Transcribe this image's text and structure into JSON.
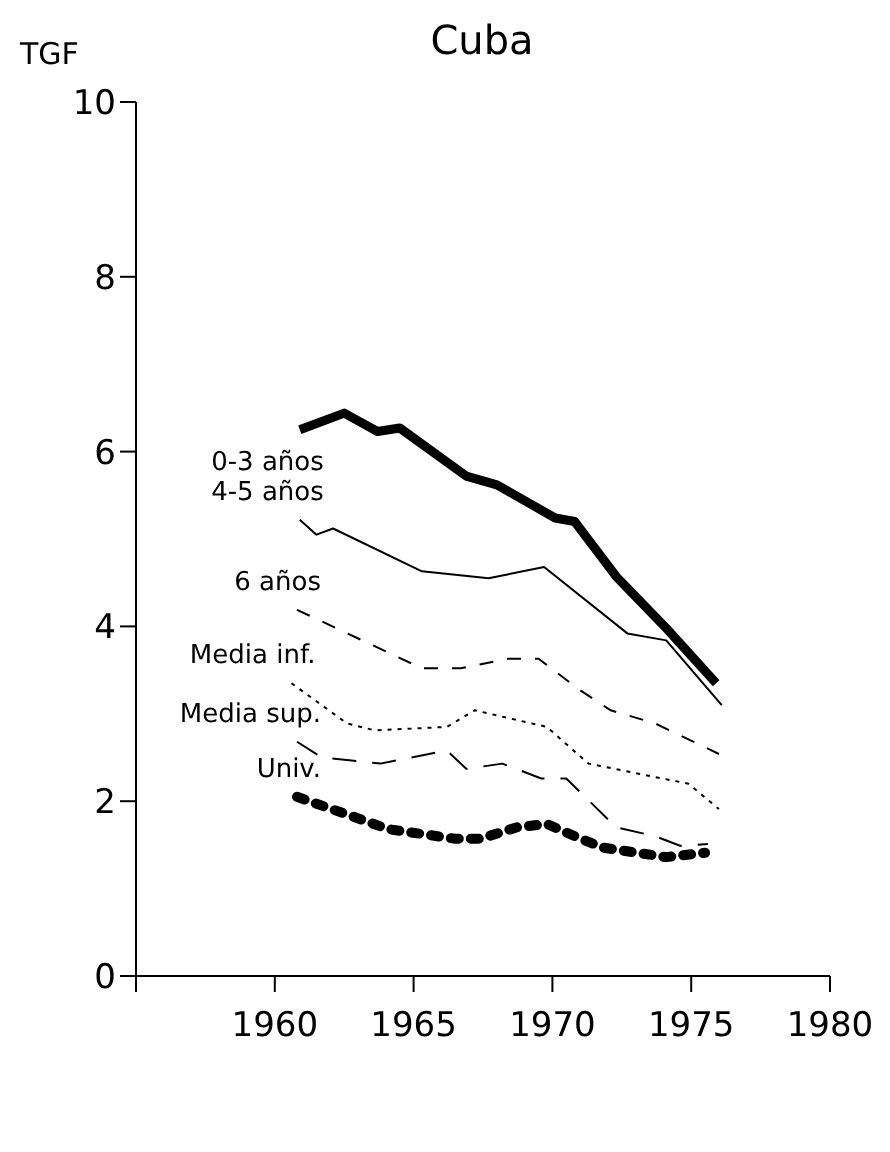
{
  "chart_data": {
    "type": "line",
    "title": "Cuba",
    "ylabel": "TGF",
    "xlim": [
      1955,
      1980
    ],
    "xticks": [
      {
        "value": 1955,
        "label": null
      },
      1960,
      1965,
      1970,
      1975,
      1980
    ],
    "ylim": [
      0,
      10
    ],
    "yticks": [
      0,
      2,
      4,
      6,
      8,
      10
    ],
    "marker": "none",
    "series": [
      {
        "name": "0-3 años",
        "color": "#000000",
        "line_style": "solid",
        "x": [
          1960.9,
          1962.5,
          1963.7,
          1964.5,
          1966.9,
          1968,
          1970.1,
          1970.8,
          1972.3,
          1974.1,
          1975.9
        ],
        "values": [
          6.25,
          6.44,
          6.23,
          6.27,
          5.72,
          5.62,
          5.24,
          5.2,
          4.57,
          3.98,
          3.35
        ]
      },
      {
        "name": "4-5 años",
        "color": "#000000",
        "line_style": "solid",
        "x": [
          1960.9,
          1961.5,
          1962.1,
          1965.3,
          1967.7,
          1969.7,
          1972.7,
          1974.1,
          1976.1
        ],
        "values": [
          5.22,
          5.05,
          5.12,
          4.63,
          4.55,
          4.68,
          3.92,
          3.84,
          3.1
        ]
      },
      {
        "name": "6 años",
        "color": "#000000",
        "line_style": "dashed",
        "x": [
          1960.8,
          1965.3,
          1966.7,
          1968.4,
          1969.5,
          1971,
          1972.1,
          1973.7,
          1976
        ],
        "values": [
          4.19,
          3.52,
          3.52,
          3.63,
          3.63,
          3.27,
          3.04,
          2.89,
          2.54
        ]
      },
      {
        "name": "Media inf.",
        "color": "#000000",
        "line_style": "dotted",
        "x": [
          1960.6,
          1962.6,
          1963.6,
          1966.2,
          1967.2,
          1969.8,
          1971.3,
          1974.9,
          1976
        ],
        "values": [
          3.35,
          2.89,
          2.81,
          2.85,
          3.04,
          2.85,
          2.43,
          2.2,
          1.91
        ]
      },
      {
        "name": "Media sup.",
        "color": "#000000",
        "line_style": "dashed",
        "x": [
          1960.8,
          1961.7,
          1963.8,
          1966.2,
          1966.9,
          1968.2,
          1969.6,
          1970.5,
          1972.3,
          1973.7,
          1974.6,
          1975.6
        ],
        "values": [
          2.68,
          2.5,
          2.43,
          2.58,
          2.37,
          2.43,
          2.26,
          2.26,
          1.7,
          1.6,
          1.49,
          1.51
        ]
      },
      {
        "name": "Univ.",
        "color": "#000000",
        "line_style": "dotted",
        "x": [
          1960.8,
          1964.1,
          1966.5,
          1967.4,
          1968.7,
          1969.8,
          1970.8,
          1971.8,
          1974.1,
          1975.5
        ],
        "values": [
          2.05,
          1.68,
          1.57,
          1.57,
          1.7,
          1.74,
          1.6,
          1.47,
          1.36,
          1.41
        ]
      }
    ]
  }
}
